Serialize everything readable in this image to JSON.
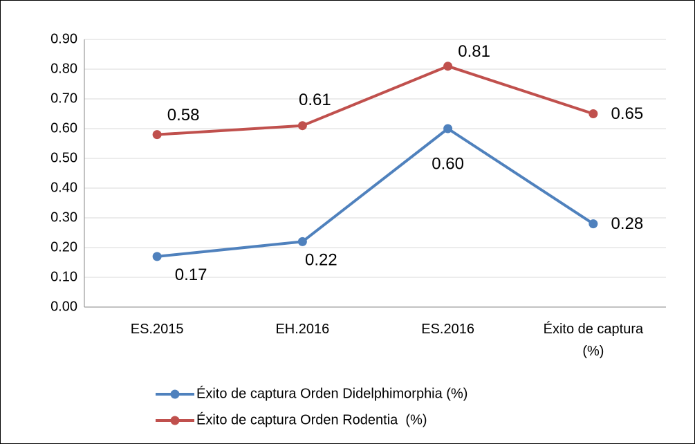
{
  "chart_data": {
    "type": "line",
    "categories": [
      "ES.2015",
      "EH.2016",
      "ES.2016",
      "Éxito de captura (%)"
    ],
    "series": [
      {
        "name": "Éxito de captura Orden Didelphimorphia (%)",
        "color": "#4f81bd",
        "values": [
          0.17,
          0.22,
          0.6,
          0.28
        ],
        "value_labels": [
          "0.17",
          "0.22",
          "0.60",
          "0.28"
        ]
      },
      {
        "name": "Éxito de captura Orden Rodentia  (%)",
        "color": "#c0504d",
        "values": [
          0.58,
          0.61,
          0.81,
          0.65
        ],
        "value_labels": [
          "0.58",
          "0.61",
          "0.81",
          "0.65"
        ]
      }
    ],
    "ylim": [
      0,
      0.9
    ],
    "yticks": [
      {
        "value": 0,
        "label": "0.00"
      },
      {
        "value": 0.1,
        "label": "0.10"
      },
      {
        "value": 0.2,
        "label": "0.20"
      },
      {
        "value": 0.3,
        "label": "0.30"
      },
      {
        "value": 0.4,
        "label": "0.40"
      },
      {
        "value": 0.5,
        "label": "0.50"
      },
      {
        "value": 0.6,
        "label": "0.60"
      },
      {
        "value": 0.7,
        "label": "0.70"
      },
      {
        "value": 0.8,
        "label": "0.80"
      },
      {
        "value": 0.9,
        "label": "0.90"
      }
    ],
    "grid": true,
    "legend": "bottom"
  }
}
